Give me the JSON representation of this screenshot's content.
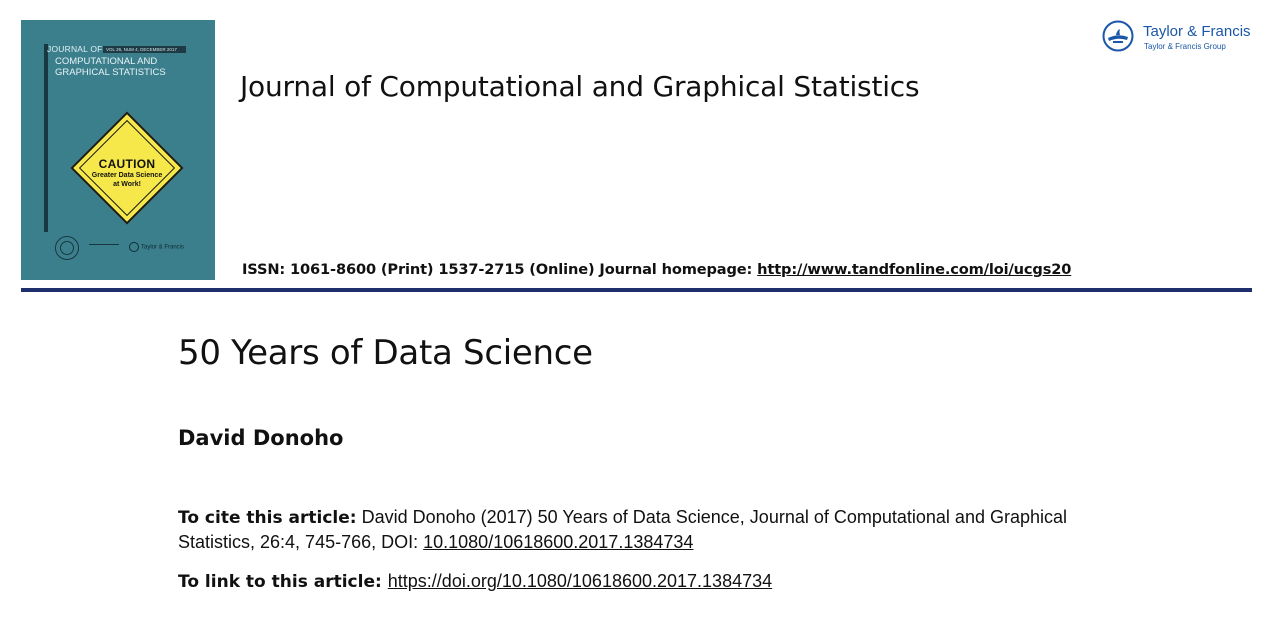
{
  "cover": {
    "journal_of": "JOURNAL OF",
    "volume": "VOL 26, NUM 4, DECEMBER 2017",
    "title_line1": "COMPUTATIONAL AND",
    "title_line2": "GRAPHICAL STATISTICS",
    "caution_word": "CAUTION",
    "caution_line1": "Greater Data Science",
    "caution_line2": "at Work!",
    "publisher": "Taylor & Francis"
  },
  "header": {
    "journal_title": "Journal of Computational and Graphical Statistics",
    "publisher_name": "Taylor & Francis",
    "publisher_group": "Taylor & Francis Group",
    "issn_text": "ISSN: 1061-8600 (Print) 1537-2715 (Online) Journal homepage: ",
    "homepage_url": "http://www.tandfonline.com/loi/ucgs20"
  },
  "article": {
    "title": "50 Years of Data Science",
    "author": "David Donoho",
    "cite_label": "To cite this article:",
    "cite_text": " David Donoho (2017) 50 Years of Data Science, Journal of Computational and Graphical Statistics, 26:4, 745-766, DOI: ",
    "doi": "10.1080/10618600.2017.1384734",
    "link_label": "To link to this article:",
    "link_url": "https://doi.org/10.1080/10618600.2017.1384734"
  },
  "colors": {
    "cover_teal": "#3b7f8d",
    "caution_yellow": "#f6e84a",
    "rule_navy": "#1f2e6d",
    "publisher_blue": "#1a57a8"
  }
}
